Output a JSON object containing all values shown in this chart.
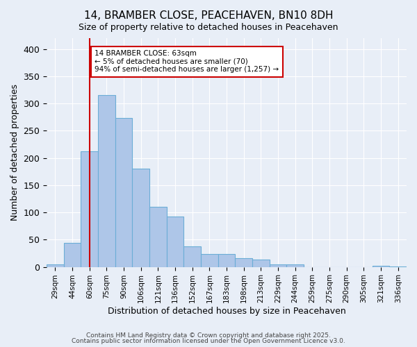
{
  "title_line1": "14, BRAMBER CLOSE, PEACEHAVEN, BN10 8DH",
  "title_line2": "Size of property relative to detached houses in Peacehaven",
  "xlabel": "Distribution of detached houses by size in Peacehaven",
  "ylabel": "Number of detached properties",
  "bin_labels": [
    "29sqm",
    "44sqm",
    "60sqm",
    "75sqm",
    "90sqm",
    "106sqm",
    "121sqm",
    "136sqm",
    "152sqm",
    "167sqm",
    "183sqm",
    "198sqm",
    "213sqm",
    "229sqm",
    "244sqm",
    "259sqm",
    "275sqm",
    "290sqm",
    "305sqm",
    "321sqm",
    "336sqm"
  ],
  "bar_values": [
    5,
    44,
    212,
    316,
    274,
    180,
    110,
    93,
    38,
    24,
    24,
    16,
    13,
    5,
    5,
    0,
    0,
    0,
    0,
    2,
    1
  ],
  "bar_color": "#aec6e8",
  "bar_edge_color": "#6baed6",
  "vline_color": "#cc0000",
  "annotation_title": "14 BRAMBER CLOSE: 63sqm",
  "annotation_line2": "← 5% of detached houses are smaller (70)",
  "annotation_line3": "94% of semi-detached houses are larger (1,257) →",
  "annotation_box_color": "#ffffff",
  "annotation_box_edge": "#cc0000",
  "ylim": [
    0,
    420
  ],
  "yticks": [
    0,
    50,
    100,
    150,
    200,
    250,
    300,
    350,
    400
  ],
  "bg_color": "#e8eef7",
  "grid_color": "#ffffff",
  "footer_line1": "Contains HM Land Registry data © Crown copyright and database right 2025.",
  "footer_line2": "Contains public sector information licensed under the Open Government Licence v3.0."
}
